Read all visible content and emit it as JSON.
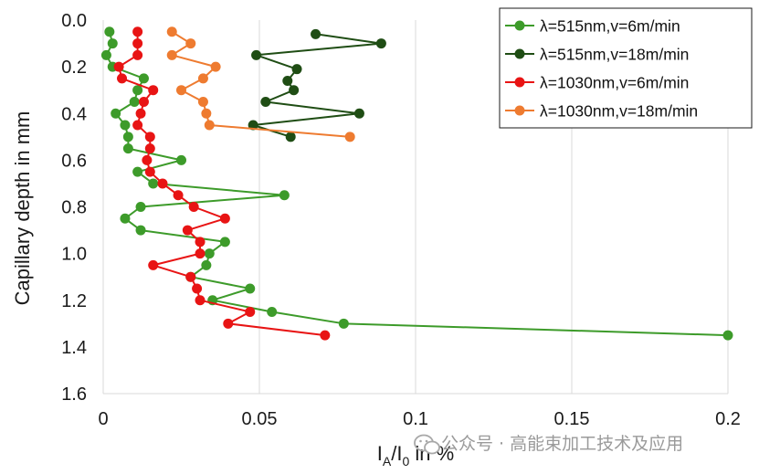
{
  "chart_data": {
    "type": "line",
    "xlabel": "I_A/I_0 in %",
    "xlabel_parts": {
      "main": "I",
      "sub1": "A",
      "slash": "/I",
      "sub2": "0",
      "tail": " in %"
    },
    "ylabel": "Capillary depth in mm",
    "xlim": [
      0,
      0.2
    ],
    "ylim": [
      0,
      1.6
    ],
    "y_inverted": true,
    "grid": "vertical",
    "legend_position": "top-right",
    "x_ticks": [
      {
        "value": 0,
        "label": "0"
      },
      {
        "value": 0.05,
        "label": "0.05"
      },
      {
        "value": 0.1,
        "label": "0.1"
      },
      {
        "value": 0.15,
        "label": "0.15"
      },
      {
        "value": 0.2,
        "label": "0.2"
      }
    ],
    "y_ticks": [
      {
        "value": 0,
        "label": "0.0"
      },
      {
        "value": 0.2,
        "label": "0.2"
      },
      {
        "value": 0.4,
        "label": "0.4"
      },
      {
        "value": 0.6,
        "label": "0.6"
      },
      {
        "value": 0.8,
        "label": "0.8"
      },
      {
        "value": 1.0,
        "label": "1.0"
      },
      {
        "value": 1.2,
        "label": "1.2"
      },
      {
        "value": 1.4,
        "label": "1.4"
      },
      {
        "value": 1.6,
        "label": "1.6"
      }
    ],
    "series": [
      {
        "name": "λ=515nm,v=6m/min",
        "color": "#3d9b2a",
        "points": [
          [
            0.002,
            0.05
          ],
          [
            0.003,
            0.1
          ],
          [
            0.001,
            0.15
          ],
          [
            0.003,
            0.2
          ],
          [
            0.013,
            0.25
          ],
          [
            0.011,
            0.3
          ],
          [
            0.01,
            0.35
          ],
          [
            0.004,
            0.4
          ],
          [
            0.007,
            0.45
          ],
          [
            0.008,
            0.5
          ],
          [
            0.008,
            0.55
          ],
          [
            0.025,
            0.6
          ],
          [
            0.011,
            0.65
          ],
          [
            0.016,
            0.7
          ],
          [
            0.058,
            0.75
          ],
          [
            0.012,
            0.8
          ],
          [
            0.007,
            0.85
          ],
          [
            0.012,
            0.9
          ],
          [
            0.039,
            0.95
          ],
          [
            0.034,
            1.0
          ],
          [
            0.033,
            1.05
          ],
          [
            0.028,
            1.1
          ],
          [
            0.047,
            1.15
          ],
          [
            0.035,
            1.2
          ],
          [
            0.054,
            1.25
          ],
          [
            0.077,
            1.3
          ],
          [
            0.2,
            1.35
          ]
        ]
      },
      {
        "name": "λ=515nm,v=18m/min",
        "color": "#1f4d14",
        "points": [
          [
            0.068,
            0.06
          ],
          [
            0.089,
            0.1
          ],
          [
            0.049,
            0.15
          ],
          [
            0.062,
            0.21
          ],
          [
            0.059,
            0.26
          ],
          [
            0.061,
            0.3
          ],
          [
            0.052,
            0.35
          ],
          [
            0.082,
            0.4
          ],
          [
            0.048,
            0.45
          ],
          [
            0.06,
            0.5
          ]
        ]
      },
      {
        "name": "λ=1030nm,v=6m/min",
        "color": "#e81414",
        "points": [
          [
            0.011,
            0.05
          ],
          [
            0.011,
            0.1
          ],
          [
            0.011,
            0.15
          ],
          [
            0.005,
            0.2
          ],
          [
            0.006,
            0.25
          ],
          [
            0.016,
            0.3
          ],
          [
            0.013,
            0.35
          ],
          [
            0.012,
            0.4
          ],
          [
            0.011,
            0.45
          ],
          [
            0.015,
            0.5
          ],
          [
            0.015,
            0.55
          ],
          [
            0.014,
            0.6
          ],
          [
            0.015,
            0.65
          ],
          [
            0.019,
            0.7
          ],
          [
            0.024,
            0.75
          ],
          [
            0.029,
            0.8
          ],
          [
            0.039,
            0.85
          ],
          [
            0.027,
            0.9
          ],
          [
            0.031,
            0.95
          ],
          [
            0.031,
            1.0
          ],
          [
            0.016,
            1.05
          ],
          [
            0.028,
            1.1
          ],
          [
            0.03,
            1.15
          ],
          [
            0.031,
            1.2
          ],
          [
            0.047,
            1.25
          ],
          [
            0.04,
            1.3
          ],
          [
            0.071,
            1.35
          ]
        ]
      },
      {
        "name": "λ=1030nm,v=18m/min",
        "color": "#ee7b30",
        "points": [
          [
            0.022,
            0.05
          ],
          [
            0.028,
            0.1
          ],
          [
            0.022,
            0.15
          ],
          [
            0.036,
            0.2
          ],
          [
            0.032,
            0.25
          ],
          [
            0.025,
            0.3
          ],
          [
            0.032,
            0.35
          ],
          [
            0.033,
            0.4
          ],
          [
            0.034,
            0.45
          ],
          [
            0.079,
            0.5
          ]
        ]
      }
    ]
  },
  "watermark": {
    "icon": "wechat-icon",
    "text": "公众号 · 高能束加工技术及应用"
  }
}
